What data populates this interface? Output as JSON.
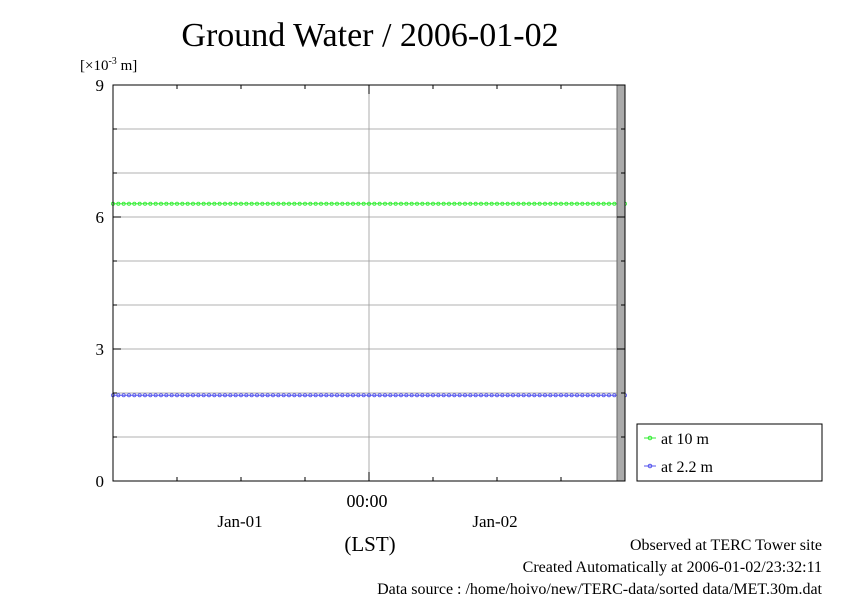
{
  "title": "Ground Water / 2006-01-02",
  "y_unit_prefix": "[×10",
  "y_unit_exp": "-3",
  "y_unit_suffix": " m]",
  "x_axis_label": "(LST)",
  "footer": {
    "observed": "Observed at TERC Tower site",
    "created": "Created Automatically at 2006-01-02/23:32:11",
    "source": "Data source : /home/hoivo/new/TERC-data/sorted  data/MET.30m.dat"
  },
  "chart_data": {
    "type": "line",
    "title": "Ground Water / 2006-01-02",
    "ylabel": "[×10-3 m]",
    "xlabel": "(LST)",
    "ylim": [
      0,
      9
    ],
    "yticks": [
      "0",
      "3",
      "6",
      "9"
    ],
    "x_time_label": "00:00",
    "x_day_labels": [
      "Jan-01",
      "Jan-02"
    ],
    "x_range_hours": [
      -24,
      24
    ],
    "series": [
      {
        "name": "at 10 m",
        "color": "#33ee33",
        "start_hour": -24,
        "step_hours": 0.5,
        "count": 97,
        "constant": 6.3
      },
      {
        "name": "at 2.2 m",
        "color": "#5555ee",
        "start_hour": -24,
        "step_hours": 0.5,
        "count": 97,
        "constant": 1.95
      }
    ],
    "legend_position": "right-bottom",
    "grid": true
  }
}
